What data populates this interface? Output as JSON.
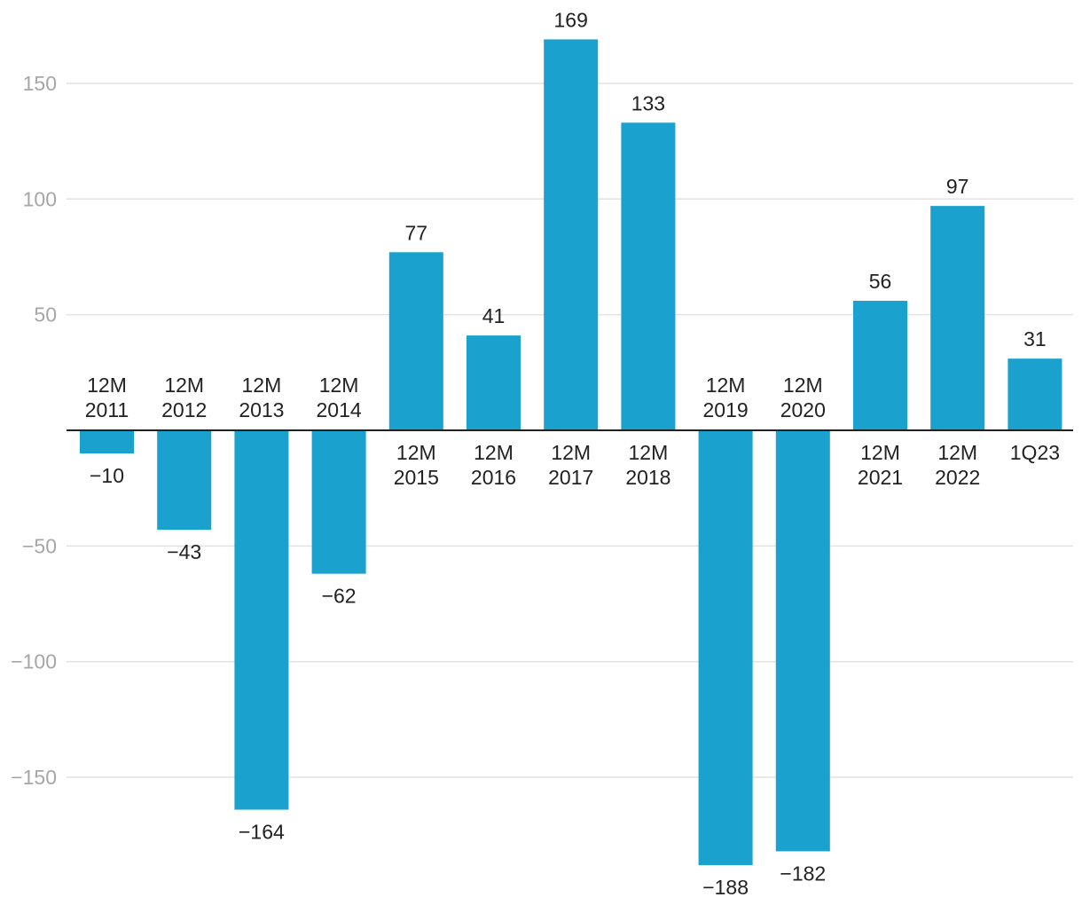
{
  "chart_data": {
    "type": "bar",
    "title": "",
    "xlabel": "",
    "ylabel": "",
    "ylim": [
      -190,
      175
    ],
    "yticks": [
      150,
      100,
      50,
      -50,
      -100,
      -150
    ],
    "ytick_labels": [
      "150",
      "100",
      "50",
      "−50",
      "−100",
      "−150"
    ],
    "grid": true,
    "bar_color": "#1aa1cd",
    "categories": [
      [
        "12M",
        "2011"
      ],
      [
        "12M",
        "2012"
      ],
      [
        "12M",
        "2013"
      ],
      [
        "12M",
        "2014"
      ],
      [
        "12M",
        "2015"
      ],
      [
        "12M",
        "2016"
      ],
      [
        "12M",
        "2017"
      ],
      [
        "12M",
        "2018"
      ],
      [
        "12M",
        "2019"
      ],
      [
        "12M",
        "2020"
      ],
      [
        "12M",
        "2021"
      ],
      [
        "12M",
        "2022"
      ],
      [
        "1Q23"
      ]
    ],
    "values": [
      -10,
      -43,
      -164,
      -62,
      77,
      41,
      169,
      133,
      -188,
      -182,
      56,
      97,
      31
    ],
    "value_labels": [
      "−10",
      "−43",
      "−164",
      "−62",
      "77",
      "41",
      "169",
      "133",
      "−188",
      "−182",
      "56",
      "97",
      "31"
    ]
  }
}
